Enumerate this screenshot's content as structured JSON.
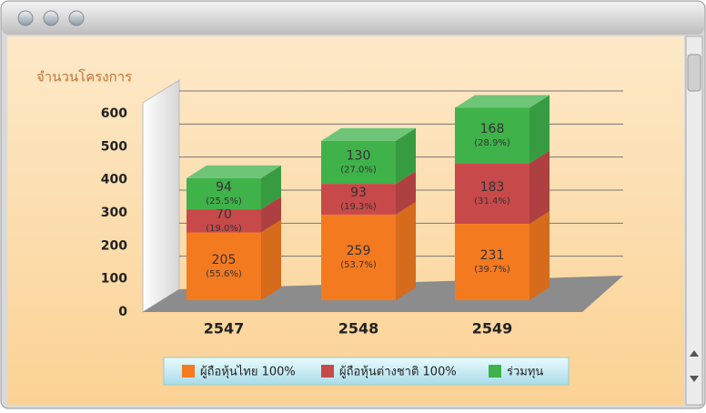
{
  "chart_data": {
    "type": "bar3d_stacked",
    "y_label": "จำนวนโครงการ",
    "categories": [
      "2547",
      "2548",
      "2549"
    ],
    "series": [
      {
        "name": "ผู้ถือหุ้นไทย 100%",
        "color": "#f47a20",
        "values": [
          205,
          259,
          231
        ],
        "share_labels": [
          "(55.6%)",
          "(53.7%)",
          "(39.7%)"
        ]
      },
      {
        "name": "ผู้ถือหุ้นต่างชาติ 100%",
        "color": "#c8494a",
        "values": [
          70,
          93,
          183
        ],
        "share_labels": [
          "(19.0%)",
          "(19.3%)",
          "(31.4%)"
        ]
      },
      {
        "name": "ร่วมทุน",
        "color": "#3fb24a",
        "values": [
          94,
          130,
          168
        ],
        "share_labels": [
          "(25.5%)",
          "(27.0%)",
          "(28.9%)"
        ]
      }
    ],
    "ylim": [
      0,
      600
    ],
    "yticks": [
      0,
      100,
      200,
      300,
      400,
      500,
      600
    ],
    "grid": true
  }
}
